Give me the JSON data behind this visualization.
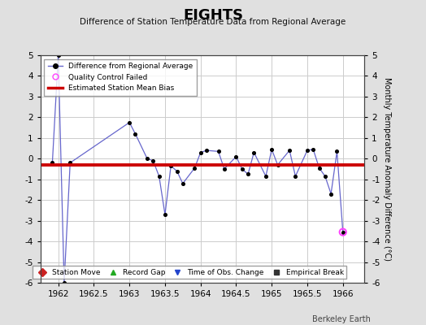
{
  "title": "EIGHTS",
  "subtitle": "Difference of Station Temperature Data from Regional Average",
  "ylabel": "Monthly Temperature Anomaly Difference (°C)",
  "background_color": "#e0e0e0",
  "plot_bg_color": "#ffffff",
  "grid_color": "#cccccc",
  "xlim": [
    1961.75,
    1966.3
  ],
  "ylim": [
    -6,
    5
  ],
  "yticks": [
    -6,
    -5,
    -4,
    -3,
    -2,
    -1,
    0,
    1,
    2,
    3,
    4,
    5
  ],
  "xticks": [
    1962,
    1962.5,
    1963,
    1963.5,
    1964,
    1964.5,
    1965,
    1965.5,
    1966
  ],
  "bias_value": -0.3,
  "line_color": "#6666cc",
  "dot_color": "#000000",
  "bias_color": "#cc0000",
  "qc_fail_color": "#ff44ff",
  "data_x": [
    1961.917,
    1962.0,
    1962.083,
    1962.167,
    1963.0,
    1963.083,
    1963.25,
    1963.333,
    1963.417,
    1963.5,
    1963.583,
    1963.667,
    1963.75,
    1963.917,
    1964.0,
    1964.083,
    1964.25,
    1964.333,
    1964.5,
    1964.583,
    1964.667,
    1964.75,
    1964.917,
    1965.0,
    1965.083,
    1965.25,
    1965.333,
    1965.5,
    1965.583,
    1965.667,
    1965.75,
    1965.833,
    1965.917,
    1966.0
  ],
  "data_y": [
    -0.2,
    5.0,
    -6.0,
    -0.2,
    1.75,
    1.2,
    0.0,
    -0.1,
    -0.85,
    -2.7,
    -0.35,
    -0.6,
    -1.2,
    -0.45,
    0.3,
    0.4,
    0.35,
    -0.5,
    0.1,
    -0.5,
    -0.75,
    0.3,
    -0.85,
    0.45,
    -0.3,
    0.4,
    -0.85,
    0.4,
    0.45,
    -0.45,
    -0.85,
    -1.7,
    0.35,
    -3.55
  ],
  "qc_fail_x": [
    1966.0
  ],
  "qc_fail_y": [
    -3.55
  ],
  "berkeley_earth_text": "Berkeley Earth"
}
